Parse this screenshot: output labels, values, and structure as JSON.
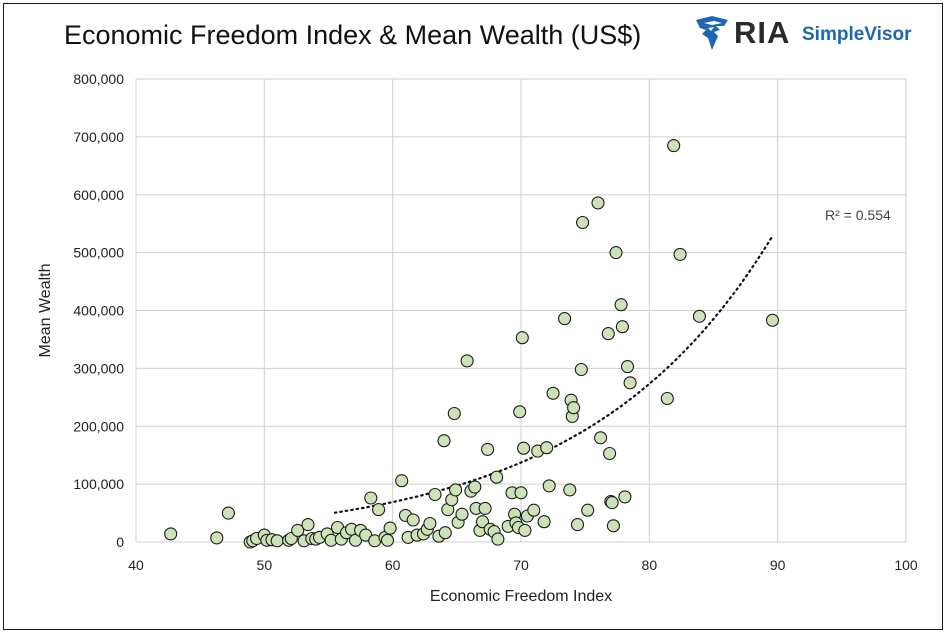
{
  "brand": {
    "ria": "RIA",
    "simplevisor": "SimpleVisor"
  },
  "colors": {
    "marker_fill": "#cde2b6",
    "marker_stroke": "#1a1a1a",
    "grid": "#d0d0d0",
    "brand_blue": "#1f66b0"
  },
  "chart_data": {
    "type": "scatter",
    "title": "Economic Freedom Index & Mean Wealth (US$)",
    "xlabel": "Economic Freedom Index",
    "ylabel": "Mean Wealth",
    "xlim": [
      40,
      100
    ],
    "ylim": [
      0,
      800000
    ],
    "xticks": [
      40,
      50,
      60,
      70,
      80,
      90,
      100
    ],
    "yticks": [
      0,
      100000,
      200000,
      300000,
      400000,
      500000,
      600000,
      700000,
      800000
    ],
    "ytick_labels": [
      "0",
      "100,000",
      "200,000",
      "300,000",
      "400,000",
      "500,000",
      "600,000",
      "700,000",
      "800,000"
    ],
    "grid": true,
    "trendline": {
      "type": "exponential",
      "style": "dotted",
      "x_range": [
        55.5,
        89.5
      ],
      "r2_label": "R² = 0.554",
      "a": 1112,
      "b": 0.0688
    },
    "points": [
      [
        42.7,
        14000
      ],
      [
        46.3,
        7000
      ],
      [
        47.2,
        50000
      ],
      [
        48.9,
        0
      ],
      [
        49.1,
        2000
      ],
      [
        49.4,
        6000
      ],
      [
        50.0,
        12000
      ],
      [
        50.2,
        3000
      ],
      [
        50.6,
        4000
      ],
      [
        51.0,
        2000
      ],
      [
        51.9,
        3000
      ],
      [
        52.1,
        6000
      ],
      [
        52.6,
        20000
      ],
      [
        53.1,
        2000
      ],
      [
        53.4,
        30000
      ],
      [
        53.7,
        6000
      ],
      [
        54.0,
        5000
      ],
      [
        54.3,
        8000
      ],
      [
        54.9,
        14000
      ],
      [
        55.2,
        3000
      ],
      [
        55.7,
        25000
      ],
      [
        56.0,
        5000
      ],
      [
        56.4,
        16000
      ],
      [
        56.8,
        22000
      ],
      [
        57.1,
        3000
      ],
      [
        57.5,
        20000
      ],
      [
        57.9,
        12000
      ],
      [
        58.3,
        76000
      ],
      [
        58.6,
        2000
      ],
      [
        58.9,
        56000
      ],
      [
        59.4,
        8000
      ],
      [
        59.6,
        3000
      ],
      [
        59.8,
        24000
      ],
      [
        60.7,
        106000
      ],
      [
        61.0,
        46000
      ],
      [
        61.2,
        8000
      ],
      [
        61.6,
        38000
      ],
      [
        61.9,
        12000
      ],
      [
        62.4,
        14000
      ],
      [
        62.7,
        22000
      ],
      [
        62.9,
        32000
      ],
      [
        63.3,
        82000
      ],
      [
        63.6,
        10000
      ],
      [
        64.0,
        175000
      ],
      [
        64.1,
        16000
      ],
      [
        64.3,
        56000
      ],
      [
        64.6,
        73000
      ],
      [
        64.8,
        222000
      ],
      [
        64.9,
        90000
      ],
      [
        65.1,
        34000
      ],
      [
        65.4,
        48000
      ],
      [
        65.8,
        313000
      ],
      [
        66.1,
        88000
      ],
      [
        66.4,
        95000
      ],
      [
        66.5,
        58000
      ],
      [
        66.8,
        20000
      ],
      [
        67.0,
        35000
      ],
      [
        67.2,
        58000
      ],
      [
        67.4,
        160000
      ],
      [
        67.6,
        22000
      ],
      [
        67.9,
        18000
      ],
      [
        68.1,
        112000
      ],
      [
        68.2,
        5000
      ],
      [
        69.0,
        27000
      ],
      [
        69.3,
        85000
      ],
      [
        69.5,
        48000
      ],
      [
        69.6,
        33000
      ],
      [
        69.8,
        25000
      ],
      [
        69.9,
        225000
      ],
      [
        70.0,
        85000
      ],
      [
        70.1,
        353000
      ],
      [
        70.2,
        162000
      ],
      [
        70.3,
        20000
      ],
      [
        70.5,
        45000
      ],
      [
        71.0,
        55000
      ],
      [
        71.3,
        157000
      ],
      [
        71.8,
        35000
      ],
      [
        72.0,
        163000
      ],
      [
        72.2,
        97000
      ],
      [
        72.5,
        257000
      ],
      [
        73.4,
        386000
      ],
      [
        73.8,
        90000
      ],
      [
        73.9,
        245000
      ],
      [
        74.0,
        217000
      ],
      [
        74.1,
        232000
      ],
      [
        74.4,
        30000
      ],
      [
        74.7,
        298000
      ],
      [
        74.8,
        552000
      ],
      [
        75.2,
        55000
      ],
      [
        76.0,
        586000
      ],
      [
        76.2,
        180000
      ],
      [
        76.8,
        360000
      ],
      [
        76.9,
        153000
      ],
      [
        77.0,
        70000
      ],
      [
        77.1,
        68000
      ],
      [
        77.2,
        28000
      ],
      [
        77.4,
        500000
      ],
      [
        77.8,
        410000
      ],
      [
        77.9,
        372000
      ],
      [
        78.1,
        78000
      ],
      [
        78.3,
        303000
      ],
      [
        78.5,
        275000
      ],
      [
        81.4,
        248000
      ],
      [
        81.9,
        685000
      ],
      [
        82.4,
        497000
      ],
      [
        83.9,
        390000
      ],
      [
        89.6,
        383000
      ]
    ]
  }
}
